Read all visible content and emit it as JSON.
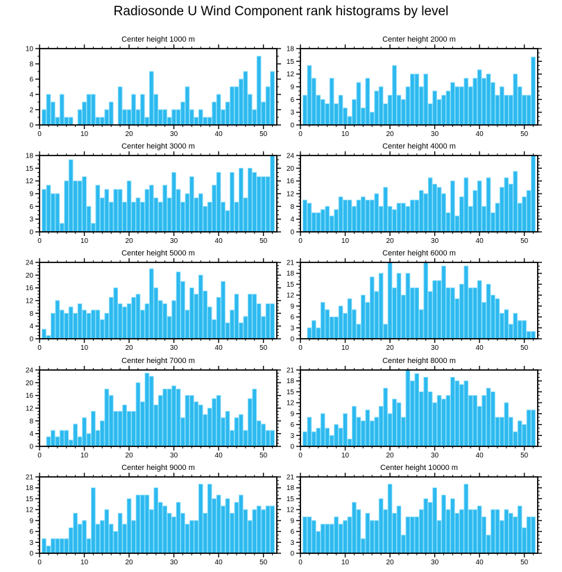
{
  "page_title": "Radiosonde U Wind Component rank histograms by level",
  "colors": {
    "bar_fill": "#2CB9EF",
    "bar_edge": "#86DBF8",
    "axis": "#000000",
    "text": "#000000",
    "background": "#FFFFFF"
  },
  "chart_data": [
    {
      "type": "bar",
      "title": "Center height 1000 m",
      "xlabel": "",
      "ylabel": "",
      "xlim": [
        0,
        53
      ],
      "ylim": [
        0,
        10
      ],
      "y_tick_step": 2,
      "y_minor_step": 1,
      "x_major_step": 10,
      "x_minor_step": 2,
      "x_start": 1,
      "grid": false,
      "legend": "none",
      "values": [
        2,
        4,
        3,
        1,
        4,
        1,
        1,
        0,
        2,
        3,
        4,
        4,
        1,
        1,
        2,
        3,
        0,
        5,
        2,
        2,
        4,
        2,
        4,
        1,
        7,
        4,
        2,
        2,
        1,
        2,
        2,
        3,
        5,
        2,
        1,
        2,
        1,
        1,
        3,
        4,
        2,
        3,
        5,
        5,
        6,
        7,
        4,
        2,
        9,
        3,
        5,
        7
      ]
    },
    {
      "type": "bar",
      "title": "Center height 2000 m",
      "xlabel": "",
      "ylabel": "",
      "xlim": [
        0,
        53
      ],
      "ylim": [
        0,
        18
      ],
      "y_tick_step": 3,
      "y_minor_step": 1,
      "x_major_step": 10,
      "x_minor_step": 2,
      "x_start": 1,
      "grid": false,
      "legend": "none",
      "values": [
        7,
        14,
        11,
        7,
        6,
        5,
        11,
        5,
        7,
        4,
        2,
        6,
        10,
        4,
        11,
        3,
        8,
        9,
        5,
        7,
        14,
        7,
        6,
        9,
        12,
        12,
        9,
        12,
        5,
        8,
        6,
        7,
        8,
        10,
        9,
        9,
        11,
        9,
        11,
        13,
        11,
        12,
        10,
        7,
        9,
        7,
        7,
        12,
        9,
        7,
        7,
        16
      ]
    },
    {
      "type": "bar",
      "title": "Center height 3000 m",
      "xlabel": "",
      "ylabel": "",
      "xlim": [
        0,
        53
      ],
      "ylim": [
        0,
        18
      ],
      "y_tick_step": 3,
      "y_minor_step": 1,
      "x_major_step": 10,
      "x_minor_step": 2,
      "x_start": 1,
      "grid": false,
      "legend": "none",
      "values": [
        10,
        11,
        9,
        9,
        2,
        12,
        17,
        12,
        12,
        13,
        6,
        2,
        11,
        8,
        10,
        7,
        10,
        10,
        7,
        12,
        7,
        8,
        7,
        10,
        11,
        8,
        7,
        11,
        8,
        14,
        10,
        7,
        9,
        13,
        8,
        9,
        6,
        7,
        11,
        14,
        7,
        5,
        14,
        7,
        15,
        8,
        15,
        14,
        13,
        13,
        13,
        18
      ]
    },
    {
      "type": "bar",
      "title": "Center height 4000 m",
      "xlabel": "",
      "ylabel": "",
      "xlim": [
        0,
        53
      ],
      "ylim": [
        0,
        24
      ],
      "y_tick_step": 4,
      "y_minor_step": 1,
      "x_major_step": 10,
      "x_minor_step": 2,
      "x_start": 1,
      "grid": false,
      "legend": "none",
      "values": [
        10,
        9,
        6,
        6,
        7,
        8,
        5,
        7,
        11,
        10,
        10,
        8,
        10,
        11,
        10,
        10,
        12,
        8,
        14,
        8,
        7,
        9,
        9,
        8,
        10,
        10,
        13,
        12,
        17,
        15,
        14,
        12,
        6,
        16,
        5,
        11,
        17,
        8,
        13,
        16,
        8,
        17,
        6,
        9,
        14,
        17,
        15,
        19,
        9,
        11,
        13,
        24
      ]
    },
    {
      "type": "bar",
      "title": "Center height 5000 m",
      "xlabel": "",
      "ylabel": "",
      "xlim": [
        0,
        53
      ],
      "ylim": [
        0,
        24
      ],
      "y_tick_step": 4,
      "y_minor_step": 1,
      "x_major_step": 10,
      "x_minor_step": 2,
      "x_start": 1,
      "grid": false,
      "legend": "none",
      "values": [
        3,
        1,
        8,
        12,
        9,
        8,
        10,
        8,
        11,
        9,
        8,
        9,
        9,
        6,
        8,
        13,
        16,
        11,
        10,
        11,
        13,
        14,
        9,
        11,
        22,
        16,
        12,
        11,
        7,
        12,
        21,
        18,
        9,
        16,
        14,
        20,
        15,
        10,
        6,
        13,
        18,
        5,
        9,
        14,
        5,
        7,
        14,
        14,
        11,
        7,
        11,
        11
      ]
    },
    {
      "type": "bar",
      "title": "Center height 6000 m",
      "xlabel": "",
      "ylabel": "",
      "xlim": [
        0,
        53
      ],
      "ylim": [
        0,
        21
      ],
      "y_tick_step": 3,
      "y_minor_step": 1,
      "x_major_step": 10,
      "x_minor_step": 2,
      "x_start": 1,
      "grid": false,
      "legend": "none",
      "values": [
        0,
        3,
        5,
        3,
        10,
        8,
        6,
        6,
        9,
        7,
        11,
        8,
        4,
        12,
        10,
        17,
        13,
        18,
        4,
        21,
        14,
        18,
        12,
        18,
        14,
        14,
        8,
        21,
        13,
        16,
        16,
        20,
        14,
        14,
        11,
        15,
        20,
        14,
        14,
        16,
        10,
        15,
        12,
        11,
        7,
        8,
        4,
        7,
        5,
        5,
        2,
        2
      ]
    },
    {
      "type": "bar",
      "title": "Center height 7000 m",
      "xlabel": "",
      "ylabel": "",
      "xlim": [
        0,
        53
      ],
      "ylim": [
        0,
        24
      ],
      "y_tick_step": 4,
      "y_minor_step": 1,
      "x_major_step": 10,
      "x_minor_step": 2,
      "x_start": 1,
      "grid": false,
      "legend": "none",
      "values": [
        0,
        3,
        5,
        3,
        5,
        5,
        2,
        7,
        3,
        9,
        4,
        11,
        5,
        8,
        18,
        16,
        11,
        11,
        13,
        11,
        11,
        20,
        14,
        23,
        22,
        13,
        16,
        18,
        18,
        19,
        18,
        9,
        16,
        16,
        14,
        13,
        10,
        12,
        15,
        16,
        9,
        11,
        5,
        9,
        10,
        5,
        15,
        18,
        8,
        7,
        5,
        5
      ]
    },
    {
      "type": "bar",
      "title": "Center height 8000 m",
      "xlabel": "",
      "ylabel": "",
      "xlim": [
        0,
        53
      ],
      "ylim": [
        0,
        21
      ],
      "y_tick_step": 3,
      "y_minor_step": 1,
      "x_major_step": 10,
      "x_minor_step": 2,
      "x_start": 1,
      "grid": false,
      "legend": "none",
      "values": [
        4,
        8,
        4,
        5,
        9,
        5,
        3,
        6,
        5,
        9,
        2,
        11,
        8,
        7,
        10,
        7,
        8,
        11,
        16,
        9,
        13,
        12,
        8,
        21,
        18,
        20,
        15,
        19,
        15,
        12,
        14,
        13,
        14,
        19,
        18,
        17,
        18,
        14,
        14,
        11,
        14,
        16,
        15,
        8,
        8,
        12,
        8,
        4,
        7,
        6,
        10,
        10
      ]
    },
    {
      "type": "bar",
      "title": "Center height 9000 m",
      "xlabel": "",
      "ylabel": "",
      "xlim": [
        0,
        53
      ],
      "ylim": [
        0,
        21
      ],
      "y_tick_step": 3,
      "y_minor_step": 1,
      "x_major_step": 10,
      "x_minor_step": 2,
      "x_start": 1,
      "grid": false,
      "legend": "none",
      "values": [
        4,
        2,
        4,
        4,
        4,
        4,
        7,
        11,
        8,
        9,
        4,
        18,
        8,
        9,
        12,
        8,
        6,
        11,
        8,
        15,
        9,
        16,
        16,
        16,
        12,
        18,
        14,
        13,
        11,
        10,
        14,
        11,
        8,
        9,
        9,
        19,
        11,
        19,
        15,
        16,
        13,
        15,
        11,
        14,
        16,
        12,
        9,
        12,
        13,
        12,
        13,
        13
      ]
    },
    {
      "type": "bar",
      "title": "Center height 10000 m",
      "xlabel": "",
      "ylabel": "",
      "xlim": [
        0,
        53
      ],
      "ylim": [
        0,
        21
      ],
      "y_tick_step": 3,
      "y_minor_step": 1,
      "x_major_step": 10,
      "x_minor_step": 2,
      "x_start": 1,
      "grid": false,
      "legend": "none",
      "values": [
        10,
        10,
        9,
        6,
        8,
        8,
        8,
        10,
        8,
        9,
        10,
        14,
        12,
        4,
        11,
        9,
        9,
        15,
        12,
        19,
        11,
        13,
        5,
        10,
        10,
        10,
        12,
        15,
        14,
        18,
        9,
        16,
        12,
        15,
        11,
        12,
        19,
        12,
        12,
        13,
        10,
        5,
        12,
        12,
        9,
        12,
        11,
        10,
        13,
        7,
        10,
        10
      ]
    }
  ]
}
